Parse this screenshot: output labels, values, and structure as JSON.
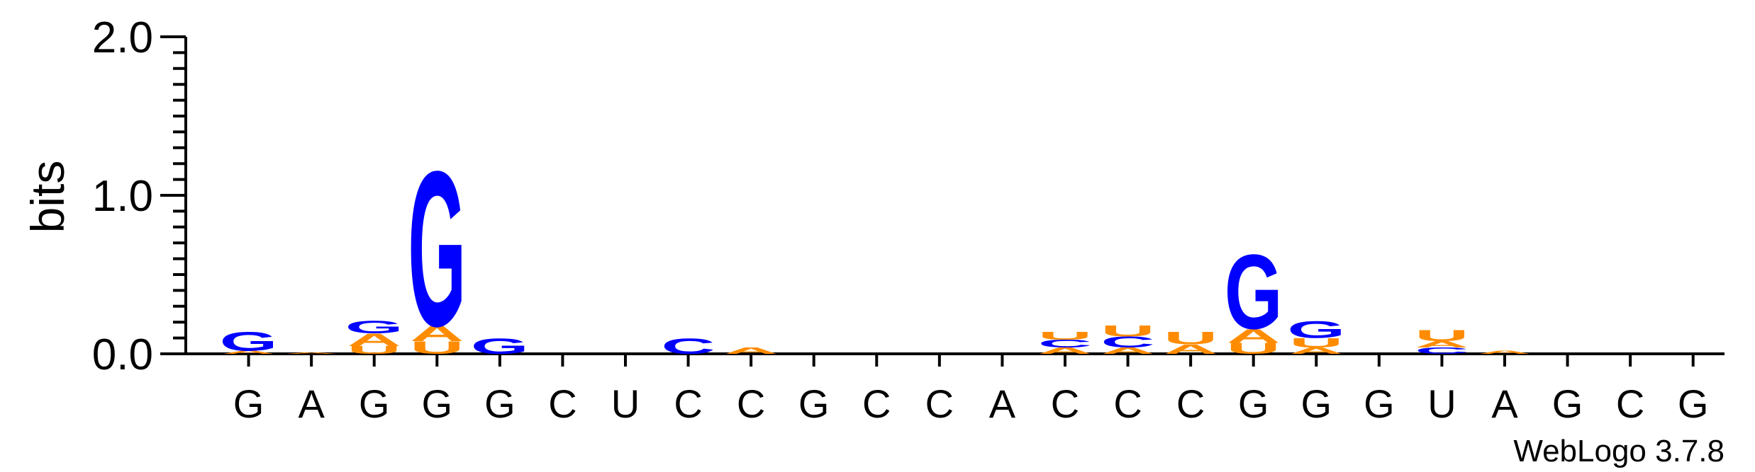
{
  "chart_data": {
    "type": "sequence-logo",
    "ylabel": "bits",
    "ylim": [
      0,
      2.0
    ],
    "y_ticks": [
      "0.0",
      "1.0",
      "2.0"
    ],
    "x_ticks": [
      "G",
      "A",
      "G",
      "G",
      "G",
      "C",
      "U",
      "C",
      "C",
      "G",
      "C",
      "C",
      "A",
      "C",
      "C",
      "C",
      "G",
      "G",
      "G",
      "U",
      "A",
      "G",
      "C",
      "G"
    ],
    "colors": {
      "G": "#0000ff",
      "C": "#0000ff",
      "A": "#ff8c00",
      "U": "#ff8c00"
    },
    "positions": [
      [
        [
          "A",
          0.02
        ],
        [
          "G",
          0.12
        ]
      ],
      [
        [
          "A",
          0.01
        ]
      ],
      [
        [
          "U",
          0.05
        ],
        [
          "A",
          0.08
        ],
        [
          "G",
          0.08
        ]
      ],
      [
        [
          "U",
          0.08
        ],
        [
          "A",
          0.1
        ],
        [
          "G",
          1.0
        ]
      ],
      [
        [
          "G",
          0.1
        ]
      ],
      [],
      [],
      [
        [
          "C",
          0.1
        ]
      ],
      [
        [
          "A",
          0.04
        ]
      ],
      [],
      [],
      [],
      [],
      [
        [
          "A",
          0.04
        ],
        [
          "C",
          0.05
        ],
        [
          "U",
          0.05
        ]
      ],
      [
        [
          "A",
          0.04
        ],
        [
          "C",
          0.07
        ],
        [
          "U",
          0.07
        ]
      ],
      [
        [
          "A",
          0.06
        ],
        [
          "U",
          0.08
        ]
      ],
      [
        [
          "U",
          0.07
        ],
        [
          "A",
          0.09
        ],
        [
          "G",
          0.48
        ]
      ],
      [
        [
          "A",
          0.04
        ],
        [
          "U",
          0.06
        ],
        [
          "G",
          0.11
        ]
      ],
      [],
      [
        [
          "C",
          0.04
        ],
        [
          "A",
          0.04
        ],
        [
          "U",
          0.07
        ]
      ],
      [
        [
          "A",
          0.02
        ]
      ],
      [],
      [],
      []
    ],
    "footer": "WebLogo 3.7.8"
  }
}
